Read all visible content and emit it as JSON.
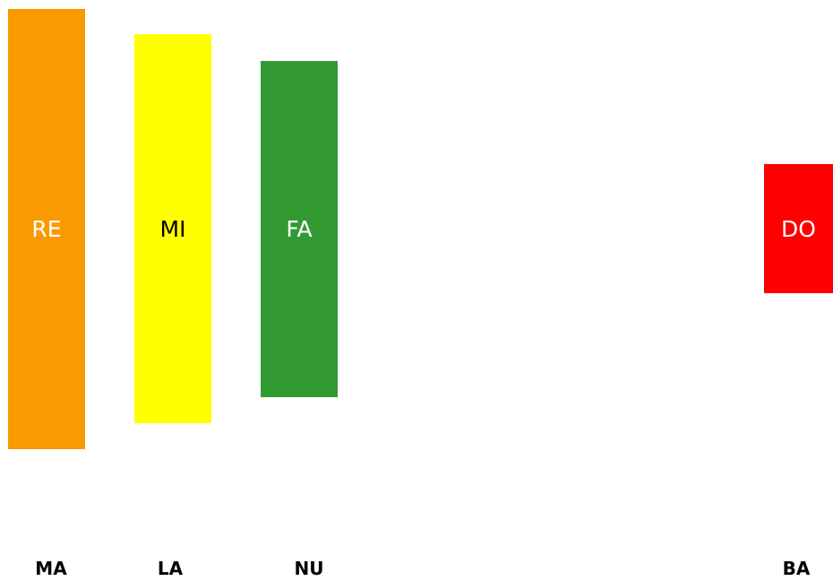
{
  "blocks": [
    {
      "label": "RE",
      "color": "#f99a00",
      "text_color": "#ffffff"
    },
    {
      "label": "MI",
      "color": "#ffff00",
      "text_color": "#000000"
    },
    {
      "label": "FA",
      "color": "#339933",
      "text_color": "#ffffff"
    },
    {
      "label": "DO",
      "color": "#ff0000",
      "text_color": "#ffffff"
    }
  ],
  "columns": [
    "MA",
    "LA",
    "NU",
    "BA"
  ]
}
